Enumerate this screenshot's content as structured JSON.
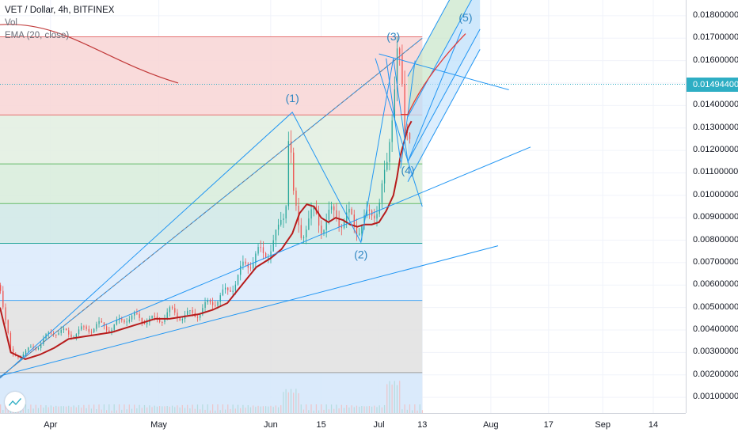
{
  "legend": {
    "symbol": "VET / Dollar, 4h, BITFINEX",
    "vol": "Vol",
    "ema": "EMA (20, close)"
  },
  "last_price": "0.01494400",
  "chart_data": {
    "type": "candlestick",
    "title": "VET / Dollar, 4h, BITFINEX",
    "y_ticks": [
      "0.01800000",
      "0.01700000",
      "0.01600000",
      "0.01500000",
      "0.01400000",
      "0.01300000",
      "0.01200000",
      "0.01100000",
      "0.01000000",
      "0.00900000",
      "0.00800000",
      "0.00700000",
      "0.00600000",
      "0.00500000",
      "0.00400000",
      "0.00300000",
      "0.00200000",
      "0.00100000"
    ],
    "y_tick_values": [
      0.018,
      0.017,
      0.016,
      0.015,
      0.014,
      0.013,
      0.012,
      0.011,
      0.01,
      0.009,
      0.008,
      0.007,
      0.006,
      0.005,
      0.004,
      0.003,
      0.002,
      0.001
    ],
    "x_ticks": [
      "Apr",
      "May",
      "Jun",
      "15",
      "Jul",
      "13",
      "Aug",
      "17",
      "Sep",
      "14"
    ],
    "x_tick_days": [
      31,
      61,
      92,
      106,
      122,
      134,
      153,
      169,
      184,
      198
    ],
    "ylim": [
      0.0003,
      0.0187
    ],
    "xlim": [
      17,
      207
    ],
    "ema_series": {
      "name": "EMA (20, close)",
      "x": [
        17,
        20,
        24,
        28,
        32,
        36,
        40,
        44,
        48,
        52,
        56,
        60,
        64,
        68,
        72,
        76,
        80,
        84,
        88,
        92,
        95,
        98,
        100,
        102,
        104,
        106,
        108,
        110,
        112,
        114,
        116,
        118,
        120,
        122,
        124,
        126,
        127,
        128,
        129,
        130,
        131
      ],
      "y": [
        0.005,
        0.003,
        0.0027,
        0.0029,
        0.0032,
        0.0036,
        0.0037,
        0.0038,
        0.0039,
        0.0041,
        0.0043,
        0.0045,
        0.0045,
        0.0046,
        0.0047,
        0.0049,
        0.0052,
        0.006,
        0.0068,
        0.0072,
        0.0076,
        0.0083,
        0.0092,
        0.0096,
        0.0095,
        0.009,
        0.0088,
        0.009,
        0.0089,
        0.0087,
        0.0086,
        0.0087,
        0.0087,
        0.0088,
        0.0093,
        0.01,
        0.0108,
        0.0118,
        0.0124,
        0.013,
        0.0133
      ]
    },
    "price_series": {
      "name": "VET / Dollar",
      "x": [
        17,
        20,
        24,
        28,
        32,
        36,
        40,
        44,
        48,
        52,
        56,
        60,
        64,
        68,
        72,
        76,
        80,
        84,
        88,
        90,
        92,
        94,
        96,
        97,
        98,
        99,
        100,
        102,
        104,
        106,
        108,
        110,
        112,
        114,
        116,
        118,
        120,
        122,
        124,
        126,
        127,
        128,
        129,
        130,
        131
      ],
      "y": [
        0.006,
        0.0028,
        0.003,
        0.0034,
        0.004,
        0.0038,
        0.004,
        0.0042,
        0.0041,
        0.0046,
        0.0045,
        0.0044,
        0.0048,
        0.0046,
        0.0048,
        0.0053,
        0.0057,
        0.0067,
        0.0074,
        0.0073,
        0.0078,
        0.0083,
        0.0096,
        0.0137,
        0.01,
        0.009,
        0.0082,
        0.0089,
        0.0091,
        0.0087,
        0.009,
        0.0092,
        0.0088,
        0.009,
        0.0086,
        0.0088,
        0.0093,
        0.0097,
        0.011,
        0.015,
        0.0168,
        0.015,
        0.0125,
        0.0132,
        0.013
      ]
    },
    "fib_levels": [
      0.01706,
      0.01358,
      0.0114,
      0.00963,
      0.00786,
      0.00532,
      0.0021
    ],
    "fib_range_days": [
      17,
      134
    ],
    "fib_zone_colors": [
      "#f8d5d5",
      "#e2efe1",
      "#d7ecdb",
      "#cfe8e6",
      "#dbeafb",
      "#e1e1e1",
      "#d3e6fa"
    ],
    "horizontal_line": 0.014944,
    "wave_labels": [
      {
        "label": "(1)",
        "x": 98,
        "y": 0.01415
      },
      {
        "label": "(2)",
        "x": 117,
        "y": 0.0072
      },
      {
        "label": "(3)",
        "x": 126,
        "y": 0.0169
      },
      {
        "label": "(4)",
        "x": 130,
        "y": 0.01095
      },
      {
        "label": "(5)",
        "x": 146,
        "y": 0.01775
      }
    ],
    "wave_path": {
      "x": [
        17,
        98,
        117,
        126,
        130,
        145
      ],
      "y": [
        0.00185,
        0.0137,
        0.0079,
        0.0161,
        0.0115,
        0.0174
      ]
    },
    "trendlines": [
      {
        "x": [
          17,
          155
        ],
        "y": [
          0.00195,
          0.00775
        ]
      },
      {
        "x": [
          45,
          164
        ],
        "y": [
          0.00415,
          0.01215
        ]
      },
      {
        "x": [
          17,
          134
        ],
        "y": [
          0.0019,
          0.017
        ]
      },
      {
        "x": [
          122,
          158
        ],
        "y": [
          0.0163,
          0.0147
        ]
      },
      {
        "x": [
          121,
          134
        ],
        "y": [
          0.0161,
          0.0095
        ]
      },
      {
        "x": [
          124,
          128
        ],
        "y": [
          0.0161,
          0.0115
        ]
      },
      {
        "x": [
          128,
          132
        ],
        "y": [
          0.0112,
          0.016
        ]
      }
    ],
    "channel": {
      "x": [
        130,
        150
      ],
      "upper": [
        0.0153,
        0.0212
      ],
      "mid": [
        0.0135,
        0.0194
      ],
      "lower": [
        0.0115,
        0.0174
      ],
      "outer": [
        0.0106,
        0.0165
      ]
    },
    "colors": {
      "up": "#26a69a",
      "down": "#ef5350",
      "ema": "#b71c1c",
      "drawing": "#2196f3",
      "last_price": "#2eaec4",
      "fib_red": "#e57373",
      "fib_green": "#66bb6a",
      "fib_teal": "#26a69a",
      "fib_blue": "#42a5f5",
      "fib_gray": "#9e9e9e"
    }
  }
}
